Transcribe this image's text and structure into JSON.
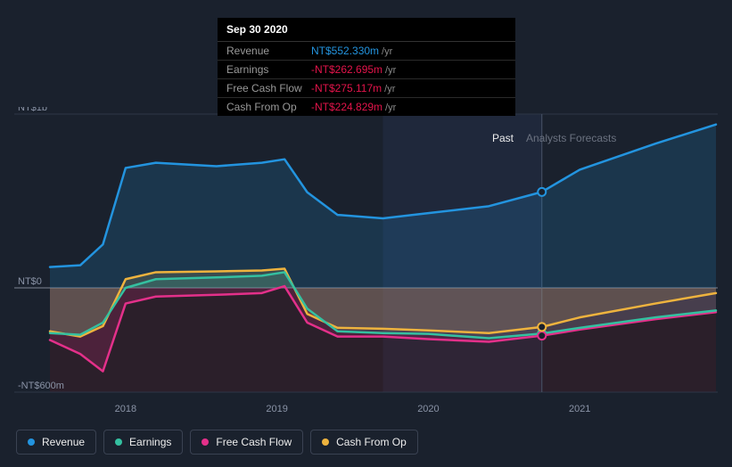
{
  "tooltip": {
    "date": "Sep 30 2020",
    "rows": [
      {
        "label": "Revenue",
        "value": "NT$552.330m",
        "color": "#2394df",
        "unit": "/yr"
      },
      {
        "label": "Earnings",
        "value": "-NT$262.695m",
        "color": "#e4144b",
        "unit": "/yr"
      },
      {
        "label": "Free Cash Flow",
        "value": "-NT$275.117m",
        "color": "#e4144b",
        "unit": "/yr"
      },
      {
        "label": "Cash From Op",
        "value": "-NT$224.829m",
        "color": "#e4144b",
        "unit": "/yr"
      }
    ]
  },
  "sections": {
    "past": "Past",
    "forecast": "Analysts Forecasts"
  },
  "axes": {
    "y": {
      "ticks": [
        {
          "v": 1000,
          "label": "NT$1b"
        },
        {
          "v": 0,
          "label": "NT$0"
        },
        {
          "v": -600,
          "label": "-NT$600m"
        }
      ],
      "min": -600,
      "max": 1000
    },
    "x": {
      "min": 2017.5,
      "max": 2021.9,
      "ticks": [
        {
          "v": 2018,
          "label": "2018"
        },
        {
          "v": 2019,
          "label": "2019"
        },
        {
          "v": 2020,
          "label": "2020"
        },
        {
          "v": 2021,
          "label": "2021"
        }
      ],
      "divider": 2020.75
    }
  },
  "series": [
    {
      "name": "Revenue",
      "color": "#2394df",
      "points": [
        [
          2017.5,
          120
        ],
        [
          2017.7,
          130
        ],
        [
          2017.85,
          250
        ],
        [
          2018.0,
          690
        ],
        [
          2018.2,
          720
        ],
        [
          2018.6,
          700
        ],
        [
          2018.9,
          720
        ],
        [
          2019.05,
          740
        ],
        [
          2019.2,
          550
        ],
        [
          2019.4,
          420
        ],
        [
          2019.7,
          400
        ],
        [
          2020.0,
          430
        ],
        [
          2020.4,
          470
        ],
        [
          2020.75,
          552
        ],
        [
          2021.0,
          680
        ],
        [
          2021.5,
          830
        ],
        [
          2021.9,
          940
        ]
      ]
    },
    {
      "name": "Earnings",
      "color": "#34c0a0",
      "points": [
        [
          2017.5,
          -260
        ],
        [
          2017.7,
          -270
        ],
        [
          2017.85,
          -200
        ],
        [
          2018.0,
          0
        ],
        [
          2018.2,
          50
        ],
        [
          2018.6,
          60
        ],
        [
          2018.9,
          70
        ],
        [
          2019.05,
          90
        ],
        [
          2019.2,
          -120
        ],
        [
          2019.4,
          -250
        ],
        [
          2019.7,
          -260
        ],
        [
          2020.0,
          -265
        ],
        [
          2020.4,
          -290
        ],
        [
          2020.75,
          -263
        ],
        [
          2021.0,
          -230
        ],
        [
          2021.5,
          -170
        ],
        [
          2021.9,
          -130
        ]
      ]
    },
    {
      "name": "Free Cash Flow",
      "color": "#e4308a",
      "points": [
        [
          2017.5,
          -300
        ],
        [
          2017.7,
          -380
        ],
        [
          2017.85,
          -480
        ],
        [
          2018.0,
          -90
        ],
        [
          2018.2,
          -50
        ],
        [
          2018.6,
          -40
        ],
        [
          2018.9,
          -30
        ],
        [
          2019.05,
          10
        ],
        [
          2019.2,
          -200
        ],
        [
          2019.4,
          -280
        ],
        [
          2019.7,
          -280
        ],
        [
          2020.0,
          -295
        ],
        [
          2020.4,
          -310
        ],
        [
          2020.75,
          -275
        ],
        [
          2021.0,
          -240
        ],
        [
          2021.5,
          -180
        ],
        [
          2021.9,
          -140
        ]
      ]
    },
    {
      "name": "Cash From Op",
      "color": "#eeb33e",
      "points": [
        [
          2017.5,
          -250
        ],
        [
          2017.7,
          -280
        ],
        [
          2017.85,
          -220
        ],
        [
          2018.0,
          50
        ],
        [
          2018.2,
          90
        ],
        [
          2018.6,
          95
        ],
        [
          2018.9,
          100
        ],
        [
          2019.05,
          110
        ],
        [
          2019.2,
          -150
        ],
        [
          2019.4,
          -230
        ],
        [
          2019.7,
          -235
        ],
        [
          2020.0,
          -245
        ],
        [
          2020.4,
          -260
        ],
        [
          2020.75,
          -225
        ],
        [
          2021.0,
          -170
        ],
        [
          2021.5,
          -90
        ],
        [
          2021.9,
          -30
        ]
      ]
    }
  ],
  "legend": [
    {
      "label": "Revenue",
      "color": "#2394df"
    },
    {
      "label": "Earnings",
      "color": "#34c0a0"
    },
    {
      "label": "Free Cash Flow",
      "color": "#e4308a"
    },
    {
      "label": "Cash From Op",
      "color": "#eeb33e"
    }
  ],
  "marker_x": 2020.75,
  "chart_style": {
    "bg": "#1a212d",
    "plot_bg_top": "#1a212d",
    "negative_band": "rgba(140,20,30,0.15)",
    "grid_line": "#2d3646",
    "zero_line": "#6b7280",
    "area_opacity": 0.18,
    "line_width": 2.5,
    "font_axis": 11,
    "axis_color": "#8a93a6"
  }
}
